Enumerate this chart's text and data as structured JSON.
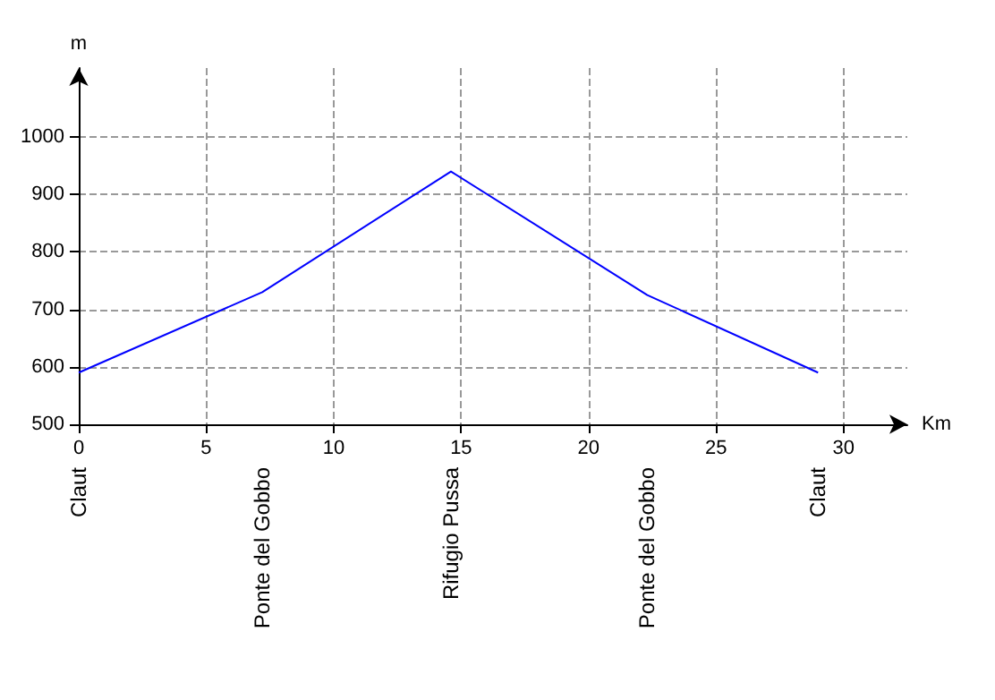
{
  "chart_data": {
    "type": "line",
    "xlabel": "Km",
    "ylabel": "m",
    "x": [
      0,
      7.2,
      14.6,
      22.3,
      29
    ],
    "series": [
      {
        "color": "#0000ff",
        "values": [
          590,
          730,
          940,
          725,
          590
        ]
      }
    ],
    "xlim": [
      0,
      32.5
    ],
    "xticks": [
      0,
      5,
      10,
      15,
      20,
      25,
      30
    ],
    "ylim": [
      500,
      1120
    ],
    "yticks": [
      500,
      600,
      700,
      800,
      900,
      1000
    ],
    "grid": true,
    "marker": "none",
    "line_style": "solid",
    "annotations": [
      "Claut",
      "Ponte del Gobbo",
      "Rifugio Pussa",
      "Ponte del Gobbo",
      "Claut"
    ]
  }
}
